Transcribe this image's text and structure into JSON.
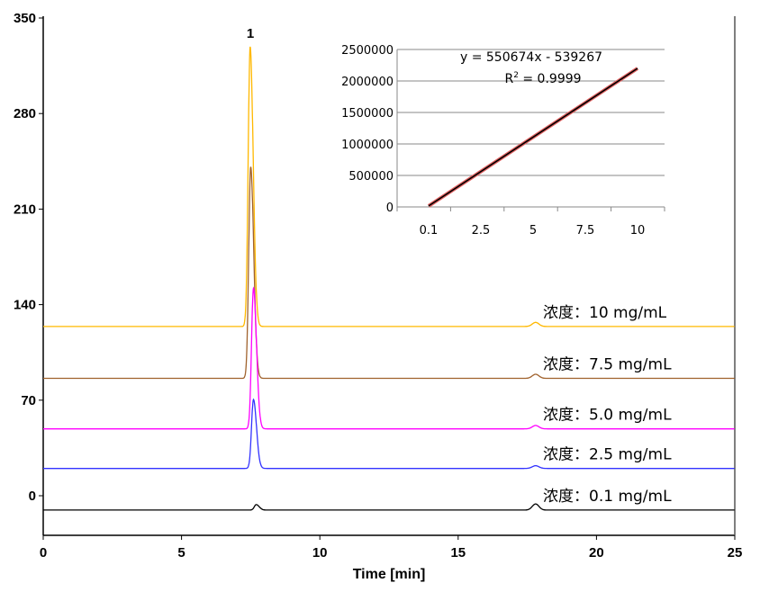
{
  "chart_data": {
    "type": "line",
    "title": "",
    "xlabel": "Time [min]",
    "ylabel": "",
    "xlim": [
      0,
      25
    ],
    "ylim": [
      -29,
      350
    ],
    "xticks": [
      "0",
      "5",
      "10",
      "15",
      "20",
      "25"
    ],
    "yticks": [
      "0",
      "70",
      "140",
      "210",
      "280",
      "350"
    ],
    "peak_label": "1",
    "peak_time": 7.5,
    "series": [
      {
        "name": "浓度：10 mg/mL",
        "color": "#FFB800",
        "baseline": 124,
        "peak_height": 329,
        "peak_time": 7.48,
        "minor_peak_time": 17.8,
        "minor_peak_height": 127
      },
      {
        "name": "浓度：7.5 mg/mL",
        "color": "#A0622D",
        "baseline": 86,
        "peak_height": 241,
        "peak_time": 7.5,
        "minor_peak_time": 17.8,
        "minor_peak_height": 89
      },
      {
        "name": "浓度：5.0 mg/mL",
        "color": "#FF00FF",
        "baseline": 49,
        "peak_height": 152,
        "peak_time": 7.6,
        "minor_peak_time": 17.8,
        "minor_peak_height": 51.5
      },
      {
        "name": "浓度：2.5 mg/mL",
        "color": "#3333FF",
        "baseline": 20,
        "peak_height": 70.5,
        "peak_time": 7.6,
        "minor_peak_time": 17.8,
        "minor_peak_height": 22
      },
      {
        "name": "浓度：0.1 mg/mL",
        "color": "#000000",
        "baseline": -10.5,
        "peak_height": -6.5,
        "peak_time": 7.7,
        "minor_peak_time": 17.8,
        "minor_peak_height": -6
      }
    ],
    "inset": {
      "type": "line",
      "categories": [
        "0.1",
        "2.5",
        "5",
        "7.5",
        "10"
      ],
      "x": [
        0.1,
        2.5,
        5,
        7.5,
        10
      ],
      "values": [
        15800,
        837400,
        1214100,
        1590900,
        2200000
      ],
      "yticks": [
        "0",
        "500000",
        "1000000",
        "1500000",
        "2000000",
        "2500000"
      ],
      "ylim": [
        0,
        2500000
      ],
      "equation": "y = 550674x - 539267",
      "r2_prefix": "R",
      "r2_sup": "2",
      "r2_value": " = 0.9999",
      "line_color": "#000000",
      "trend_color": "#E06060"
    }
  }
}
